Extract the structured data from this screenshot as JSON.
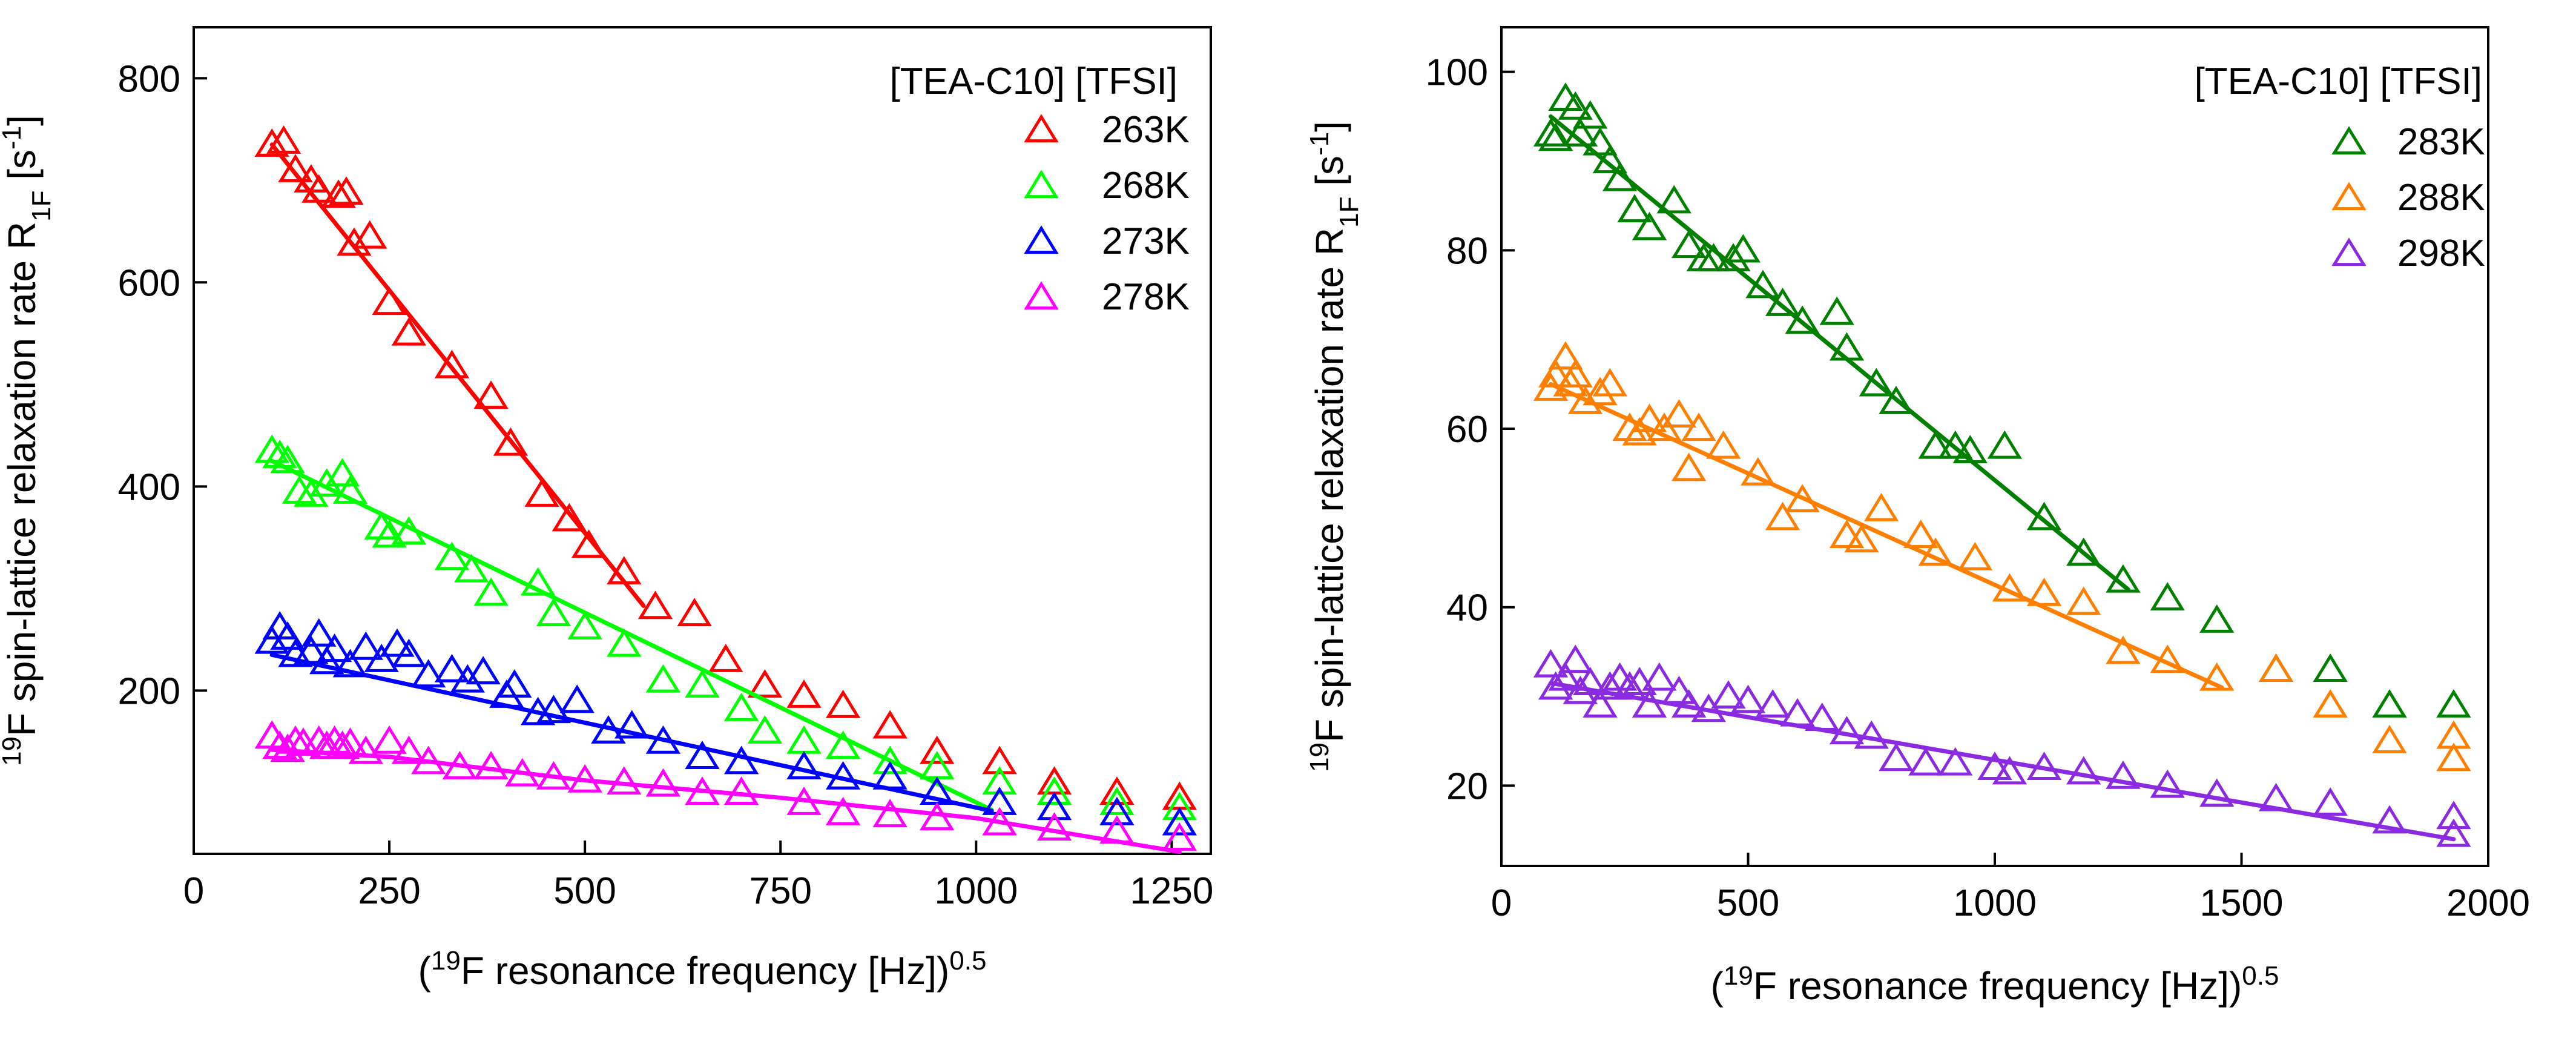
{
  "chart_data": [
    {
      "type": "scatter",
      "title": "[TEA-C10] [TFSI]",
      "xlabel": "(19F resonance frequency [Hz])0.5",
      "xlabel_parts": {
        "open": "(",
        "sup": "19",
        "main": "F resonance frequency [Hz])",
        "exp": "0.5"
      },
      "ylabel": "19F spin-lattice relaxation rate R1F [s-1]",
      "ylabel_parts": {
        "sup": "19",
        "main": "F spin-lattice relaxation rate R",
        "sub": "1F",
        "unit_open": " [s",
        "unit_exp": "-1",
        "unit_close": "]"
      },
      "xlim": [
        0,
        1300
      ],
      "ylim": [
        40,
        850
      ],
      "xticks": [
        0,
        250,
        500,
        750,
        1000,
        1250
      ],
      "yticks": [
        200,
        400,
        600,
        800
      ],
      "legend_position": "top-right",
      "series": [
        {
          "name": "263K",
          "color": "#ff0000",
          "points": [
            [
              100,
              735
            ],
            [
              115,
              738
            ],
            [
              130,
              710
            ],
            [
              150,
              700
            ],
            [
              160,
              690
            ],
            [
              185,
              685
            ],
            [
              195,
              688
            ],
            [
              205,
              638
            ],
            [
              225,
              645
            ],
            [
              250,
              580
            ],
            [
              275,
              550
            ],
            [
              330,
              518
            ],
            [
              380,
              488
            ],
            [
              405,
              442
            ],
            [
              445,
              392
            ],
            [
              480,
              368
            ],
            [
              505,
              342
            ],
            [
              550,
              316
            ],
            [
              590,
              282
            ],
            [
              640,
              275
            ],
            [
              680,
              230
            ],
            [
              730,
              205
            ],
            [
              780,
              195
            ],
            [
              830,
              185
            ],
            [
              890,
              165
            ],
            [
              950,
              140
            ],
            [
              1030,
              130
            ],
            [
              1100,
              110
            ],
            [
              1180,
              100
            ],
            [
              1260,
              95
            ]
          ],
          "fit": [
            [
              100,
              735
            ],
            [
              575,
              283
            ]
          ]
        },
        {
          "name": "268K",
          "color": "#00ff00",
          "points": [
            [
              100,
              435
            ],
            [
              110,
              430
            ],
            [
              120,
              425
            ],
            [
              135,
              395
            ],
            [
              150,
              392
            ],
            [
              170,
              402
            ],
            [
              190,
              412
            ],
            [
              200,
              395
            ],
            [
              240,
              360
            ],
            [
              250,
              352
            ],
            [
              275,
              355
            ],
            [
              330,
              330
            ],
            [
              355,
              318
            ],
            [
              380,
              295
            ],
            [
              440,
              305
            ],
            [
              460,
              275
            ],
            [
              500,
              262
            ],
            [
              550,
              245
            ],
            [
              600,
              210
            ],
            [
              650,
              205
            ],
            [
              700,
              182
            ],
            [
              730,
              160
            ],
            [
              780,
              150
            ],
            [
              830,
              145
            ],
            [
              890,
              130
            ],
            [
              950,
              125
            ],
            [
              1030,
              110
            ],
            [
              1100,
              100
            ],
            [
              1180,
              90
            ],
            [
              1260,
              85
            ]
          ],
          "fit": [
            [
              100,
              425
            ],
            [
              1020,
              83
            ]
          ]
        },
        {
          "name": "273K",
          "color": "#0000ff",
          "points": [
            [
              100,
              248
            ],
            [
              110,
              262
            ],
            [
              120,
              252
            ],
            [
              130,
              235
            ],
            [
              150,
              238
            ],
            [
              160,
              255
            ],
            [
              170,
              228
            ],
            [
              180,
              240
            ],
            [
              200,
              225
            ],
            [
              220,
              242
            ],
            [
              240,
              230
            ],
            [
              260,
              245
            ],
            [
              275,
              235
            ],
            [
              300,
              215
            ],
            [
              330,
              220
            ],
            [
              350,
              210
            ],
            [
              370,
              218
            ],
            [
              400,
              195
            ],
            [
              410,
              205
            ],
            [
              440,
              178
            ],
            [
              460,
              180
            ],
            [
              490,
              190
            ],
            [
              530,
              160
            ],
            [
              560,
              165
            ],
            [
              600,
              150
            ],
            [
              650,
              135
            ],
            [
              700,
              130
            ],
            [
              780,
              125
            ],
            [
              830,
              115
            ],
            [
              890,
              115
            ],
            [
              950,
              100
            ],
            [
              1030,
              90
            ],
            [
              1100,
              85
            ],
            [
              1180,
              80
            ],
            [
              1260,
              70
            ]
          ],
          "fit": [
            [
              100,
              235
            ],
            [
              1020,
              82
            ]
          ]
        },
        {
          "name": "278K",
          "color": "#ff00ff",
          "points": [
            [
              100,
              155
            ],
            [
              110,
              145
            ],
            [
              120,
              142
            ],
            [
              130,
              150
            ],
            [
              140,
              148
            ],
            [
              160,
              150
            ],
            [
              170,
              145
            ],
            [
              180,
              150
            ],
            [
              190,
              145
            ],
            [
              200,
              148
            ],
            [
              220,
              140
            ],
            [
              250,
              150
            ],
            [
              275,
              140
            ],
            [
              300,
              130
            ],
            [
              340,
              125
            ],
            [
              380,
              125
            ],
            [
              420,
              118
            ],
            [
              460,
              115
            ],
            [
              500,
              112
            ],
            [
              550,
              110
            ],
            [
              600,
              108
            ],
            [
              650,
              100
            ],
            [
              700,
              100
            ],
            [
              780,
              90
            ],
            [
              830,
              80
            ],
            [
              890,
              78
            ],
            [
              950,
              75
            ],
            [
              1030,
              70
            ],
            [
              1100,
              65
            ],
            [
              1180,
              62
            ],
            [
              1260,
              55
            ]
          ],
          "fit": [
            [
              100,
              142
            ],
            [
              250,
              135
            ],
            [
              500,
              112
            ],
            [
              750,
              95
            ],
            [
              1000,
              75
            ],
            [
              1260,
              42
            ]
          ]
        }
      ]
    },
    {
      "type": "scatter",
      "title": "[TEA-C10] [TFSI]",
      "xlabel": "(19F resonance frequency [Hz])0.5",
      "xlabel_parts": {
        "open": "(",
        "sup": "19",
        "main": "F resonance frequency [Hz])",
        "exp": "0.5"
      },
      "ylabel": "19F spin-lattice relaxation rate R1F [s-1]",
      "ylabel_parts": {
        "sup": "19",
        "main": "F spin-lattice relaxation rate R",
        "sub": "1F",
        "unit_open": " [s",
        "unit_exp": "-1",
        "unit_close": "]"
      },
      "xlim": [
        0,
        2000
      ],
      "ylim": [
        11,
        105
      ],
      "xticks": [
        0,
        500,
        1000,
        1500,
        2000
      ],
      "yticks": [
        20,
        40,
        60,
        80,
        100
      ],
      "legend_position": "top-right",
      "series": [
        {
          "name": "283K",
          "color": "#008000",
          "points": [
            [
              100,
              93
            ],
            [
              110,
              92.5
            ],
            [
              130,
              97
            ],
            [
              150,
              96
            ],
            [
              160,
              93
            ],
            [
              180,
              95
            ],
            [
              200,
              92
            ],
            [
              220,
              90
            ],
            [
              240,
              88
            ],
            [
              270,
              84.5
            ],
            [
              300,
              82.5
            ],
            [
              350,
              85.5
            ],
            [
              380,
              80.5
            ],
            [
              410,
              79
            ],
            [
              430,
              79
            ],
            [
              470,
              79
            ],
            [
              490,
              80
            ],
            [
              530,
              76
            ],
            [
              570,
              74
            ],
            [
              610,
              72
            ],
            [
              680,
              73
            ],
            [
              700,
              69
            ],
            [
              760,
              65
            ],
            [
              800,
              63
            ],
            [
              880,
              58
            ],
            [
              920,
              58
            ],
            [
              950,
              57.5
            ],
            [
              1020,
              58
            ],
            [
              1100,
              50
            ],
            [
              1180,
              46
            ],
            [
              1260,
              43
            ],
            [
              1350,
              41
            ],
            [
              1450,
              38.5
            ],
            [
              1570,
              33
            ],
            [
              1680,
              33
            ],
            [
              1800,
              29
            ],
            [
              1930,
              29
            ]
          ],
          "fit": [
            [
              100,
              95
            ],
            [
              1270,
              42
            ]
          ]
        },
        {
          "name": "288K",
          "color": "#ff8000",
          "points": [
            [
              100,
              64.5
            ],
            [
              110,
              66
            ],
            [
              130,
              68
            ],
            [
              140,
              65
            ],
            [
              150,
              66
            ],
            [
              170,
              63
            ],
            [
              200,
              64
            ],
            [
              220,
              65
            ],
            [
              260,
              60
            ],
            [
              280,
              59.5
            ],
            [
              300,
              61
            ],
            [
              330,
              60
            ],
            [
              360,
              61.5
            ],
            [
              380,
              55.5
            ],
            [
              400,
              60
            ],
            [
              450,
              58
            ],
            [
              520,
              55
            ],
            [
              570,
              50
            ],
            [
              610,
              52
            ],
            [
              700,
              48
            ],
            [
              730,
              47.5
            ],
            [
              770,
              51
            ],
            [
              850,
              48
            ],
            [
              880,
              46
            ],
            [
              960,
              45.5
            ],
            [
              1030,
              42
            ],
            [
              1100,
              41.5
            ],
            [
              1180,
              40.5
            ],
            [
              1260,
              35
            ],
            [
              1350,
              34
            ],
            [
              1450,
              32
            ],
            [
              1570,
              33
            ],
            [
              1680,
              29
            ],
            [
              1800,
              25
            ],
            [
              1930,
              23
            ],
            [
              1930,
              25.5
            ]
          ],
          "fit": [
            [
              100,
              65
            ],
            [
              1460,
              31
            ]
          ]
        },
        {
          "name": "298K",
          "color": "#8a2be2",
          "points": [
            [
              100,
              33.5
            ],
            [
              110,
              31
            ],
            [
              130,
              32
            ],
            [
              150,
              34
            ],
            [
              160,
              30.5
            ],
            [
              180,
              31.5
            ],
            [
              200,
              29
            ],
            [
              220,
              31
            ],
            [
              240,
              32
            ],
            [
              260,
              31
            ],
            [
              280,
              31.5
            ],
            [
              300,
              29
            ],
            [
              320,
              32
            ],
            [
              360,
              30.5
            ],
            [
              380,
              29
            ],
            [
              420,
              28.5
            ],
            [
              460,
              30
            ],
            [
              500,
              29.5
            ],
            [
              550,
              29
            ],
            [
              600,
              28
            ],
            [
              650,
              27.5
            ],
            [
              700,
              26
            ],
            [
              750,
              25.5
            ],
            [
              800,
              23
            ],
            [
              860,
              22.5
            ],
            [
              920,
              22.5
            ],
            [
              1000,
              22
            ],
            [
              1030,
              21.5
            ],
            [
              1100,
              22
            ],
            [
              1180,
              21.5
            ],
            [
              1260,
              21
            ],
            [
              1350,
              20
            ],
            [
              1450,
              19
            ],
            [
              1570,
              18.5
            ],
            [
              1680,
              18
            ],
            [
              1800,
              16
            ],
            [
              1930,
              14.5
            ],
            [
              1930,
              16.5
            ]
          ],
          "fit": [
            [
              100,
              31.5
            ],
            [
              1930,
              14
            ]
          ]
        }
      ]
    }
  ]
}
